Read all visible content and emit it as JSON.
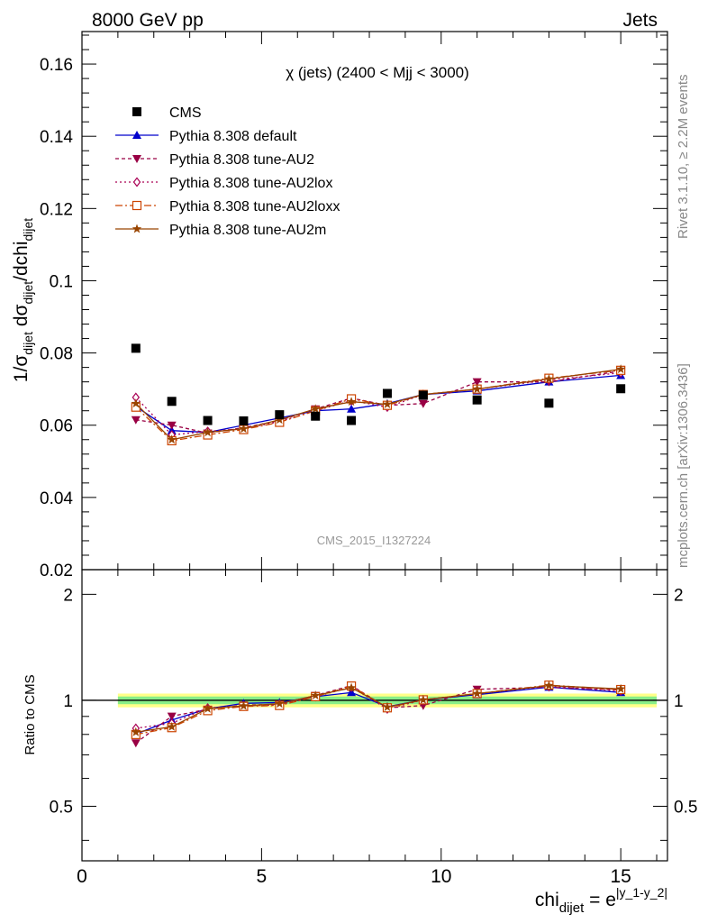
{
  "header": {
    "left": "8000 GeV pp",
    "right": "Jets"
  },
  "side_labels": {
    "rivet": "Rivet 3.1.10, ≥ 2.2M events",
    "mcplots": "mcplots.cern.ch [arXiv:1306.3436]"
  },
  "colors": {
    "cms": "#000000",
    "default": "#0000cc",
    "au2": "#990044",
    "au2lox": "#aa0055",
    "au2loxx": "#cc4400",
    "au2m": "#994400",
    "band_outer": "#ffff88",
    "band_inner": "#88ee88"
  },
  "chart_data": {
    "type": "scatter",
    "title": "χ (jets) (2400 < Mjj < 3000)",
    "watermark": "CMS_2015_I1327224",
    "xlabel": "chi",
    "xlabel_sub": "dijet",
    "xlabel_eq": " = e",
    "xlabel_sup": "|y_1-y_2|",
    "ylabel": "1/σ",
    "ylabel_sub": "dijet",
    "ylabel_mid": " dσ",
    "ylabel_sub2": "dijet",
    "ylabel_end": "/dchi",
    "ylabel_sub3": "dijet",
    "ratio_ylabel": "Ratio to CMS",
    "xlim": [
      0,
      16.3
    ],
    "ylim": [
      0.02,
      0.169
    ],
    "ratio_ylim": [
      0.35,
      2.35
    ],
    "x_ticks": [
      "0",
      "5",
      "10",
      "15"
    ],
    "y_ticks": [
      "0.02",
      "0.04",
      "0.06",
      "0.08",
      "0.1",
      "0.12",
      "0.14",
      "0.16"
    ],
    "ratio_y_ticks": [
      "0.5",
      "1",
      "2"
    ],
    "x": [
      1.5,
      2.5,
      3.5,
      4.5,
      5.5,
      6.5,
      7.5,
      8.5,
      9.5,
      11.0,
      13.0,
      15.0
    ],
    "bins": [
      [
        1,
        2
      ],
      [
        2,
        3
      ],
      [
        3,
        4
      ],
      [
        4,
        5
      ],
      [
        5,
        6
      ],
      [
        6,
        7
      ],
      [
        7,
        8
      ],
      [
        8,
        9
      ],
      [
        9,
        10
      ],
      [
        10,
        12
      ],
      [
        12,
        14
      ],
      [
        14,
        16
      ]
    ],
    "series": [
      {
        "name": "CMS",
        "key": "cms",
        "values": [
          0.0813,
          0.0666,
          0.0613,
          0.0612,
          0.0629,
          0.0625,
          0.0613,
          0.0688,
          0.0683,
          0.067,
          0.0661,
          0.0701
        ]
      },
      {
        "name": "Pythia 8.308 default",
        "key": "default",
        "values": [
          0.0652,
          0.0585,
          0.058,
          0.06,
          0.062,
          0.064,
          0.0645,
          0.066,
          0.0685,
          0.0695,
          0.072,
          0.0738
        ]
      },
      {
        "name": "Pythia 8.308 tune-AU2",
        "key": "au2",
        "values": [
          0.0615,
          0.06,
          0.0578,
          0.0593,
          0.0613,
          0.0645,
          0.0675,
          0.0655,
          0.066,
          0.072,
          0.072,
          0.075
        ]
      },
      {
        "name": "Pythia 8.308 tune-AU2lox",
        "key": "au2lox",
        "values": [
          0.0677,
          0.0573,
          0.0583,
          0.059,
          0.061,
          0.064,
          0.0668,
          0.065,
          0.0685,
          0.07,
          0.0725,
          0.0745
        ]
      },
      {
        "name": "Pythia 8.308 tune-AU2loxx",
        "key": "au2loxx",
        "values": [
          0.065,
          0.0557,
          0.0573,
          0.0588,
          0.0608,
          0.064,
          0.0673,
          0.0655,
          0.0685,
          0.07,
          0.073,
          0.0752
        ]
      },
      {
        "name": "Pythia 8.308 tune-AU2m",
        "key": "au2m",
        "values": [
          0.066,
          0.056,
          0.058,
          0.059,
          0.0615,
          0.0645,
          0.0665,
          0.0658,
          0.0685,
          0.07,
          0.0728,
          0.0755
        ]
      }
    ],
    "ratio_band": {
      "x_range": [
        1,
        16
      ],
      "outer": [
        0.955,
        1.045
      ],
      "inner": [
        0.975,
        1.025
      ]
    }
  }
}
